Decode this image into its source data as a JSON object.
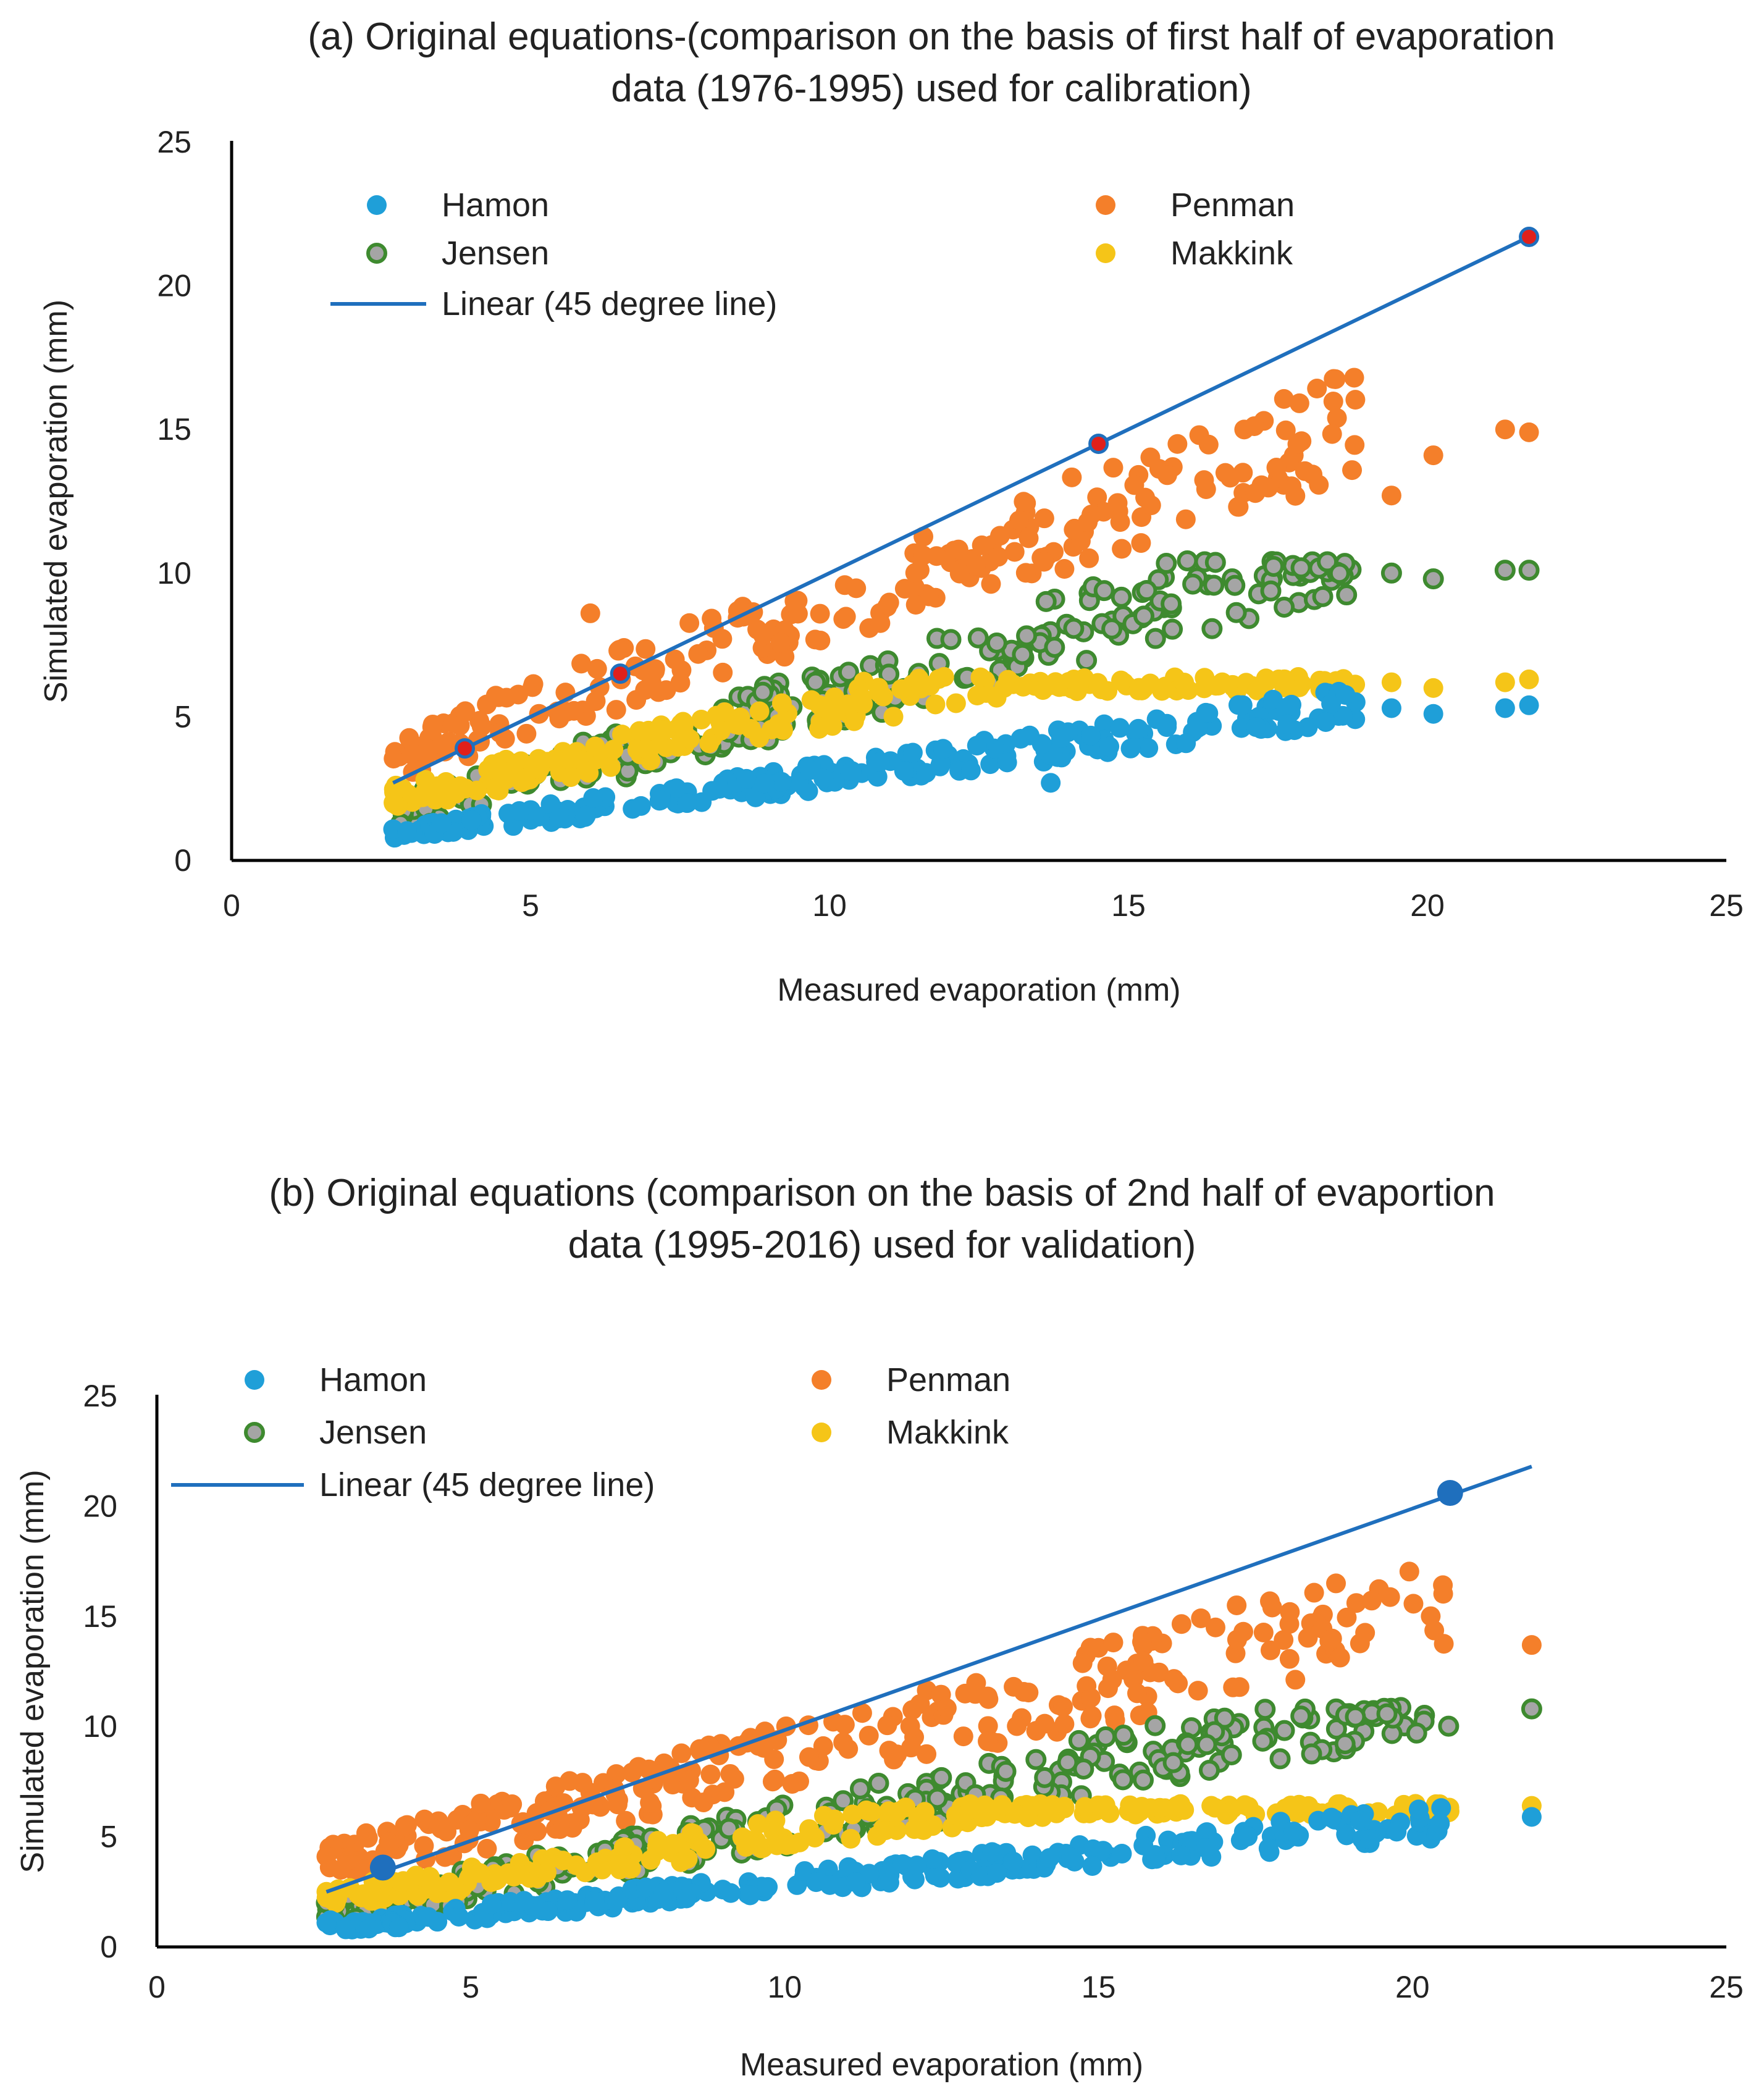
{
  "chart_data": [
    {
      "id": "a",
      "type": "scatter",
      "title_line1": "(a) Original equations-(comparison on the basis of first half of evaporation",
      "title_line2": "data (1976-1995) used for calibration)",
      "xlabel": "Measured evaporation (mm)",
      "ylabel": "Simulated evaporation (mm)",
      "xlim": [
        0,
        25
      ],
      "ylim": [
        0,
        25
      ],
      "xticks": [
        "0",
        "5",
        "10",
        "15",
        "20",
        "25"
      ],
      "yticks": [
        "0",
        "5",
        "10",
        "15",
        "20",
        "25"
      ],
      "legend": {
        "hamon": "Hamon",
        "penman": "Penman",
        "jensen": "Jensen",
        "makkink": "Makkink",
        "linear": "Linear (45 degree line)"
      },
      "colors": {
        "hamon": "#1f9fd8",
        "penman": "#f47f2a",
        "jensen": "#3e8a2f",
        "jensen_fill": "#a5a5a5",
        "makkink": "#f5c518",
        "line": "#1f6fbd",
        "line_marker": "#e0201b"
      },
      "line": {
        "x": [
          2.7,
          21.7
        ],
        "y": [
          2.7,
          21.7
        ]
      },
      "line_markers": [
        [
          3.9,
          3.9
        ],
        [
          6.5,
          6.5
        ],
        [
          14.5,
          14.5
        ],
        [
          21.7,
          21.7
        ]
      ],
      "series": [
        {
          "key": "hamon",
          "name": "Hamon",
          "x_range": [
            2.7,
            18.8
          ],
          "y_min": 0.9,
          "slope": 0.28,
          "spread": 0.55,
          "count": 230,
          "extra": [
            [
              19.4,
              5.3
            ],
            [
              20.1,
              5.1
            ],
            [
              21.3,
              5.3
            ],
            [
              21.7,
              5.4
            ],
            [
              13.7,
              2.7
            ]
          ]
        },
        {
          "key": "penman",
          "name": "Penman",
          "x_range": [
            2.7,
            18.8
          ],
          "y_min": 3.6,
          "slope": 0.72,
          "spread": 1.6,
          "count": 230,
          "extra": [
            [
              19.4,
              12.7
            ],
            [
              20.1,
              14.1
            ],
            [
              21.3,
              15.0
            ],
            [
              21.7,
              14.9
            ],
            [
              6.0,
              8.6
            ]
          ]
        },
        {
          "key": "jensen",
          "name": "Jensen",
          "x_range": [
            2.7,
            18.8
          ],
          "y_min": 1.5,
          "slope": 0.58,
          "spread": 1.3,
          "cap": 10.5,
          "count": 230,
          "extra": [
            [
              19.4,
              10.0
            ],
            [
              20.1,
              9.8
            ],
            [
              21.3,
              10.1
            ],
            [
              21.7,
              10.1
            ]
          ]
        },
        {
          "key": "makkink",
          "name": "Makkink",
          "x_range": [
            2.7,
            18.8
          ],
          "y_min": 2.2,
          "slope": 0.42,
          "spread": 0.9,
          "cap": 6.4,
          "count": 230,
          "extra": [
            [
              19.4,
              6.2
            ],
            [
              20.1,
              6.0
            ],
            [
              21.3,
              6.2
            ],
            [
              21.7,
              6.3
            ]
          ]
        }
      ]
    },
    {
      "id": "b",
      "type": "scatter",
      "title_line1": "(b) Original equations (comparison on the basis of 2nd half of evaportion",
      "title_line2": "data (1995-2016) used for validation)",
      "xlabel": "Measured evaporation (mm)",
      "ylabel": "Simulated evaporation (mm)",
      "xlim": [
        0,
        25
      ],
      "ylim": [
        0,
        25
      ],
      "xticks": [
        "0",
        "5",
        "10",
        "15",
        "20",
        "25"
      ],
      "yticks": [
        "0",
        "5",
        "10",
        "15",
        "20",
        "25"
      ],
      "legend": {
        "hamon": "Hamon",
        "penman": "Penman",
        "jensen": "Jensen",
        "makkink": "Makkink",
        "linear": "Linear (45 degree line)"
      },
      "colors": {
        "hamon": "#1f9fd8",
        "penman": "#f47f2a",
        "jensen": "#3e8a2f",
        "jensen_fill": "#a5a5a5",
        "makkink": "#f5c518",
        "line": "#1f6fbd",
        "line_marker": "#1f6fbd"
      },
      "line": {
        "x": [
          2.7,
          21.9
        ],
        "y": [
          2.5,
          21.8
        ]
      },
      "line_markers": [
        [
          3.6,
          3.6
        ],
        [
          20.6,
          20.6
        ]
      ],
      "series": [
        {
          "key": "hamon",
          "name": "Hamon",
          "x_range": [
            2.7,
            20.6
          ],
          "y_min": 0.9,
          "slope": 0.27,
          "spread": 0.6,
          "count": 260,
          "extra": [
            [
              21.9,
              5.9
            ],
            [
              2.7,
              1.1
            ]
          ]
        },
        {
          "key": "penman",
          "name": "Penman",
          "x_range": [
            2.7,
            20.6
          ],
          "y_min": 3.8,
          "slope": 0.66,
          "spread": 1.8,
          "count": 260,
          "extra": [
            [
              21.9,
              13.7
            ],
            [
              2.7,
              4.1
            ],
            [
              17.2,
              15.5
            ]
          ]
        },
        {
          "key": "jensen",
          "name": "Jensen",
          "x_range": [
            2.7,
            20.6
          ],
          "y_min": 1.5,
          "slope": 0.55,
          "spread": 1.3,
          "cap": 10.9,
          "count": 260,
          "extra": [
            [
              21.9,
              10.8
            ],
            [
              2.7,
              2.0
            ]
          ]
        },
        {
          "key": "makkink",
          "name": "Makkink",
          "x_range": [
            2.7,
            20.6
          ],
          "y_min": 2.2,
          "slope": 0.4,
          "spread": 0.9,
          "cap": 6.5,
          "count": 260,
          "extra": [
            [
              21.9,
              6.4
            ],
            [
              2.7,
              2.5
            ]
          ]
        }
      ]
    }
  ]
}
